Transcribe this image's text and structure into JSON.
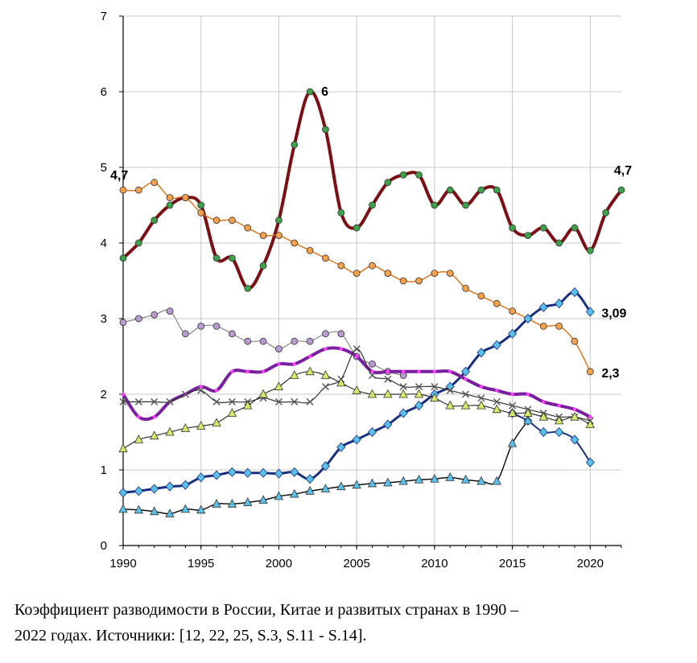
{
  "chart_data": {
    "type": "line",
    "title": "",
    "xlabel": "",
    "ylabel": "",
    "xlim": [
      1990,
      2022
    ],
    "ylim": [
      0,
      7
    ],
    "x_ticks": [
      "1990",
      "1995",
      "2000",
      "2005",
      "2010",
      "2015",
      "2020"
    ],
    "y_ticks": [
      "0",
      "1",
      "2",
      "3",
      "4",
      "5",
      "6",
      "7"
    ],
    "grid": true,
    "legend": "none",
    "series": [
      {
        "color": "#7b0f14",
        "marker_color": "#3ea04a",
        "marker": "circle",
        "width": 4,
        "x": [
          1990,
          1991,
          1992,
          1993,
          1994,
          1995,
          1996,
          1997,
          1998,
          1999,
          2000,
          2001,
          2002,
          2003,
          2004,
          2005,
          2006,
          2007,
          2008,
          2009,
          2010,
          2011,
          2012,
          2013,
          2014,
          2015,
          2016,
          2017,
          2018,
          2019,
          2020,
          2021,
          2022
        ],
        "y": [
          3.8,
          4.0,
          4.3,
          4.5,
          4.6,
          4.5,
          3.8,
          3.8,
          3.4,
          3.7,
          4.3,
          5.3,
          6.0,
          5.5,
          4.4,
          4.2,
          4.5,
          4.8,
          4.9,
          4.9,
          4.5,
          4.7,
          4.5,
          4.7,
          4.7,
          4.2,
          4.1,
          4.2,
          4.0,
          4.2,
          3.9,
          4.4,
          4.7
        ]
      },
      {
        "color": "#e0781e",
        "marker_color": "#f5a04a",
        "marker": "circle",
        "width": 1.5,
        "x": [
          1990,
          1991,
          1992,
          1993,
          1994,
          1995,
          1996,
          1997,
          1998,
          1999,
          2000,
          2001,
          2002,
          2003,
          2004,
          2005,
          2006,
          2007,
          2008,
          2009,
          2010,
          2011,
          2012,
          2013,
          2014,
          2015,
          2016,
          2017,
          2018,
          2019,
          2020
        ],
        "y": [
          4.7,
          4.7,
          4.8,
          4.6,
          4.6,
          4.4,
          4.3,
          4.3,
          4.2,
          4.1,
          4.1,
          4.0,
          3.9,
          3.8,
          3.7,
          3.6,
          3.7,
          3.6,
          3.5,
          3.5,
          3.6,
          3.6,
          3.4,
          3.3,
          3.2,
          3.1,
          3.0,
          2.9,
          2.9,
          2.7,
          2.3
        ]
      },
      {
        "color": "#888888",
        "marker_color": "#b89ad0",
        "marker": "circle",
        "width": 1.2,
        "x": [
          1990,
          1991,
          1992,
          1993,
          1994,
          1995,
          1996,
          1997,
          1998,
          1999,
          2000,
          2001,
          2002,
          2003,
          2004,
          2005,
          2006,
          2007,
          2008
        ],
        "y": [
          2.95,
          3.0,
          3.05,
          3.1,
          2.8,
          2.9,
          2.9,
          2.8,
          2.7,
          2.7,
          2.6,
          2.7,
          2.7,
          2.8,
          2.8,
          2.5,
          2.4,
          2.3,
          2.25
        ]
      },
      {
        "color": "#1a2f80",
        "marker_color": "#5ac0e8",
        "marker": "diamond",
        "width": 3,
        "x": [
          1990,
          1991,
          1992,
          1993,
          1994,
          1995,
          1996,
          1997,
          1998,
          1999,
          2000,
          2001,
          2002,
          2003,
          2004,
          2005,
          2006,
          2007,
          2008,
          2009,
          2010,
          2011,
          2012,
          2013,
          2014,
          2015,
          2016,
          2017,
          2018,
          2019,
          2020
        ],
        "y": [
          0.7,
          0.72,
          0.75,
          0.78,
          0.8,
          0.9,
          0.93,
          0.97,
          0.96,
          0.96,
          0.95,
          0.97,
          0.88,
          1.05,
          1.3,
          1.4,
          1.5,
          1.6,
          1.75,
          1.85,
          2.0,
          2.1,
          2.3,
          2.55,
          2.65,
          2.8,
          3.0,
          3.15,
          3.2,
          3.35,
          3.09
        ]
      },
      {
        "color": "#1a2f80",
        "marker_color": "#5ac0e8",
        "marker": "diamond",
        "width": 2,
        "x": [
          2015,
          2016,
          2017,
          2018,
          2019,
          2020
        ],
        "y": [
          1.75,
          1.65,
          1.5,
          1.5,
          1.4,
          1.1
        ]
      },
      {
        "color": "#7a1fa0",
        "marker_color": "#ff40ff",
        "marker": "none",
        "width": 4,
        "x": [
          1990,
          1991,
          1992,
          1993,
          1994,
          1995,
          1996,
          1997,
          1998,
          1999,
          2000,
          2001,
          2002,
          2003,
          2004,
          2005,
          2006,
          2007,
          2008,
          2009,
          2010,
          2011,
          2012,
          2013,
          2014,
          2015,
          2016,
          2017,
          2018,
          2019,
          2020
        ],
        "y": [
          2.0,
          1.7,
          1.7,
          1.9,
          2.0,
          2.1,
          2.05,
          2.3,
          2.3,
          2.3,
          2.4,
          2.4,
          2.5,
          2.6,
          2.6,
          2.5,
          2.3,
          2.3,
          2.3,
          2.3,
          2.3,
          2.3,
          2.2,
          2.1,
          2.05,
          2.0,
          2.0,
          1.9,
          1.85,
          1.8,
          1.7
        ]
      },
      {
        "color": "#333333",
        "marker_color": "#555555",
        "marker": "cross",
        "width": 1.2,
        "x": [
          1990,
          1991,
          1992,
          1993,
          1994,
          1995,
          1996,
          1997,
          1998,
          1999,
          2000,
          2001,
          2002,
          2003,
          2004,
          2005,
          2006,
          2007,
          2008,
          2009,
          2010,
          2011,
          2012,
          2013,
          2014,
          2015,
          2016,
          2017,
          2018,
          2019,
          2020
        ],
        "y": [
          1.9,
          1.9,
          1.9,
          1.9,
          2.0,
          2.05,
          1.9,
          1.9,
          1.9,
          1.95,
          1.9,
          1.9,
          1.9,
          2.1,
          2.2,
          2.6,
          2.25,
          2.2,
          2.1,
          2.1,
          2.1,
          2.05,
          2.0,
          1.95,
          1.9,
          1.85,
          1.8,
          1.75,
          1.7,
          1.7,
          1.65
        ]
      },
      {
        "color": "#333333",
        "marker_color": "#d8e86a",
        "marker": "triangle",
        "width": 1.2,
        "x": [
          1990,
          1991,
          1992,
          1993,
          1994,
          1995,
          1996,
          1997,
          1998,
          1999,
          2000,
          2001,
          2002,
          2003,
          2004,
          2005,
          2006,
          2007,
          2008,
          2009,
          2010,
          2011,
          2012,
          2013,
          2014,
          2015,
          2016,
          2017,
          2018,
          2019,
          2020
        ],
        "y": [
          1.28,
          1.4,
          1.45,
          1.5,
          1.55,
          1.58,
          1.62,
          1.75,
          1.85,
          2.0,
          2.1,
          2.25,
          2.3,
          2.25,
          2.15,
          2.05,
          2.0,
          2.0,
          2.0,
          2.0,
          1.95,
          1.85,
          1.85,
          1.85,
          1.8,
          1.75,
          1.75,
          1.7,
          1.65,
          1.7,
          1.6
        ]
      },
      {
        "color": "#111111",
        "marker_color": "#5ac0e8",
        "marker": "triangle",
        "width": 1.5,
        "x": [
          1990,
          1991,
          1992,
          1993,
          1994,
          1995,
          1996,
          1997,
          1998,
          1999,
          2000,
          2001,
          2002,
          2003,
          2004,
          2005,
          2006,
          2007,
          2008,
          2009,
          2010,
          2011,
          2012,
          2013,
          2014,
          2015,
          2016
        ],
        "y": [
          0.48,
          0.47,
          0.45,
          0.42,
          0.48,
          0.47,
          0.55,
          0.55,
          0.57,
          0.6,
          0.65,
          0.68,
          0.72,
          0.75,
          0.78,
          0.8,
          0.82,
          0.83,
          0.85,
          0.87,
          0.88,
          0.9,
          0.87,
          0.85,
          0.85,
          1.35,
          1.65
        ]
      }
    ],
    "annotations": [
      {
        "text": "4,7",
        "x": 1990,
        "y": 4.7,
        "anchor": "start",
        "dx": -16,
        "dy": -13
      },
      {
        "text": "6",
        "x": 2002,
        "y": 6.0,
        "anchor": "start",
        "dx": 14,
        "dy": 5
      },
      {
        "text": "4,7",
        "x": 2022,
        "y": 4.7,
        "anchor": "middle",
        "dx": 2,
        "dy": -19
      },
      {
        "text": "3,09",
        "x": 2020,
        "y": 3.09,
        "anchor": "start",
        "dx": 14,
        "dy": 7
      },
      {
        "text": "2,3",
        "x": 2020,
        "y": 2.3,
        "anchor": "start",
        "dx": 14,
        "dy": 7
      }
    ]
  },
  "caption": {
    "line1": "Коэффициент разводимости в России, Китае и развитых странах в 1990 –",
    "line2": "2022 годах. Источники: [12, 22, 25, S.3, S.11 - S.14]."
  }
}
